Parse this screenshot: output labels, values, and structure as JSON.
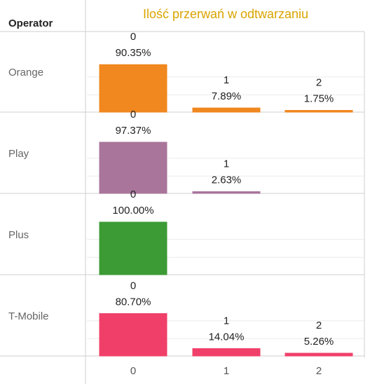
{
  "header": {
    "operator_label": "Operator"
  },
  "chart_data": {
    "type": "bar",
    "title": "Ilość przerwań w odtwarzaniu",
    "row_dimension": "Operator",
    "categories": [
      "0",
      "1",
      "2"
    ],
    "rows": [
      {
        "name": "Orange",
        "color": "#f0871f",
        "values": [
          90.35,
          7.89,
          1.75
        ],
        "labels": [
          "90.35%",
          "7.89%",
          "1.75%"
        ]
      },
      {
        "name": "Play",
        "color": "#a9759b",
        "values": [
          97.37,
          2.63,
          null
        ],
        "labels": [
          "97.37%",
          "2.63%",
          null
        ]
      },
      {
        "name": "Plus",
        "color": "#3c9b35",
        "values": [
          100.0,
          null,
          null
        ],
        "labels": [
          "100.00%",
          null,
          null
        ]
      },
      {
        "name": "T-Mobile",
        "color": "#f0406a",
        "values": [
          80.7,
          14.04,
          5.26
        ],
        "labels": [
          "80.70%",
          "14.04%",
          "5.26%"
        ]
      }
    ],
    "ylim": [
      0,
      100
    ],
    "grid": true,
    "legend": "none"
  }
}
